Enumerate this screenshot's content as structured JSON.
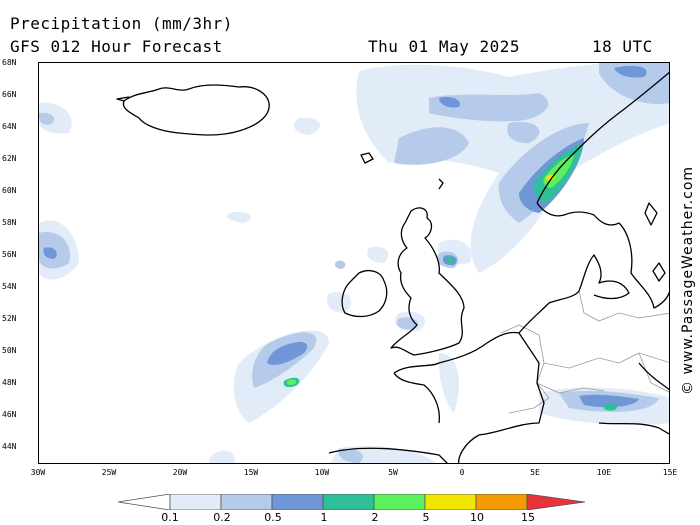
{
  "header": {
    "title": "Precipitation (mm/3hr)",
    "subtitle": "GFS 012 Hour Forecast",
    "date": "Thu 01 May 2025",
    "time": "18 UTC"
  },
  "credit": "© www.PassageWeather.com",
  "axes": {
    "lat_labels": [
      "68N",
      "66N",
      "64N",
      "62N",
      "60N",
      "58N",
      "56N",
      "54N",
      "52N",
      "50N",
      "48N",
      "46N",
      "44N"
    ],
    "lon_labels": [
      "30W",
      "25W",
      "20W",
      "15W",
      "10W",
      "5W",
      "0",
      "5E",
      "10E",
      "15E"
    ]
  },
  "legend": {
    "labels": [
      "0.1",
      "0.2",
      "0.5",
      "1",
      "2",
      "5",
      "10",
      "15"
    ],
    "colors": [
      "#ffffff",
      "#e2ecf8",
      "#b6cbe9",
      "#6f96d6",
      "#2fbf9a",
      "#5cf05c",
      "#f2e600",
      "#f59a00",
      "#e8333a"
    ]
  }
}
